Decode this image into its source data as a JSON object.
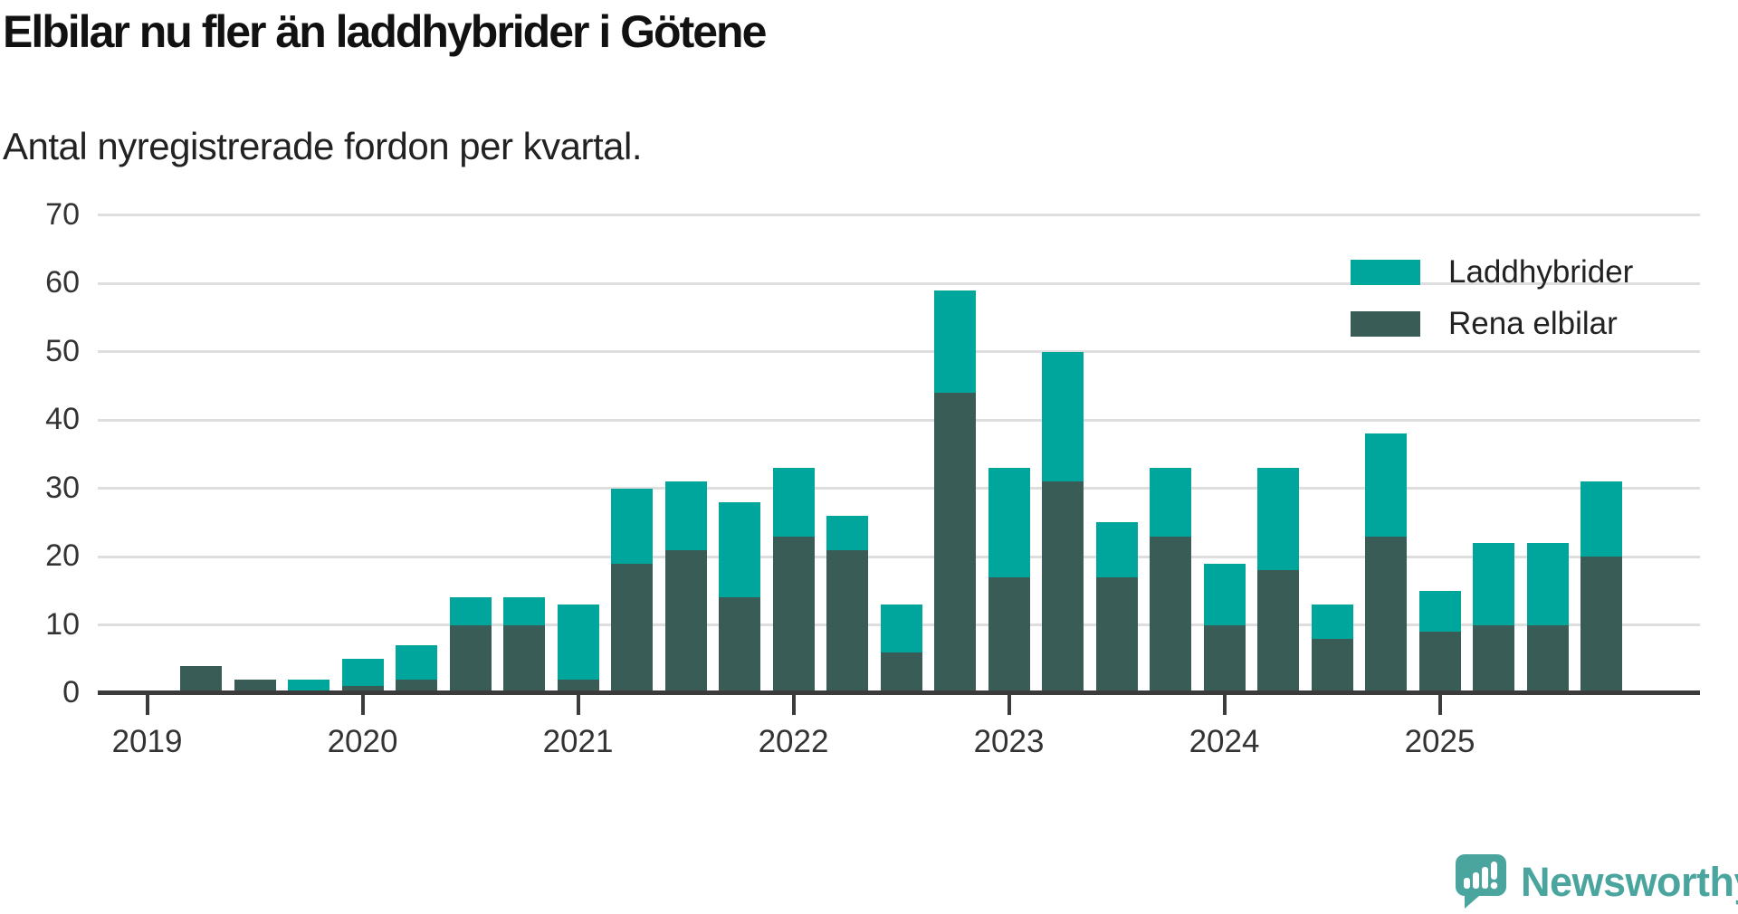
{
  "chart_data": {
    "type": "bar",
    "stacked": true,
    "title": "Elbilar nu fler än laddhybrider i Götene",
    "subtitle": "Antal nyregistrerade fordon per kvartal.",
    "categories": [
      "2019 Q1",
      "2019 Q2",
      "2019 Q3",
      "2019 Q4",
      "2020 Q1",
      "2020 Q2",
      "2020 Q3",
      "2020 Q4",
      "2021 Q1",
      "2021 Q2",
      "2021 Q3",
      "2021 Q4",
      "2022 Q1",
      "2022 Q2",
      "2022 Q3",
      "2022 Q4",
      "2023 Q1",
      "2023 Q2",
      "2023 Q3",
      "2023 Q4",
      "2024 Q1",
      "2024 Q2",
      "2024 Q3",
      "2024 Q4",
      "2025 Q1",
      "2025 Q2",
      "2025 Q3",
      "2025 Q4"
    ],
    "series": [
      {
        "name": "Laddhybrider",
        "color": "#00a59b",
        "values": [
          0,
          0,
          0,
          2,
          4,
          5,
          4,
          4,
          11,
          11,
          10,
          14,
          10,
          5,
          7,
          15,
          16,
          19,
          8,
          10,
          9,
          15,
          5,
          15,
          6,
          12,
          12,
          11
        ]
      },
      {
        "name": "Rena elbilar",
        "color": "#3a5c57",
        "values": [
          0,
          4,
          2,
          0,
          1,
          2,
          10,
          10,
          2,
          19,
          21,
          14,
          23,
          21,
          6,
          44,
          17,
          31,
          17,
          23,
          10,
          18,
          8,
          23,
          9,
          10,
          10,
          20
        ]
      }
    ],
    "stack_order_bottom_to_top": [
      "Rena elbilar",
      "Laddhybrider"
    ],
    "totals": [
      0,
      4,
      2,
      2,
      5,
      7,
      14,
      14,
      13,
      30,
      31,
      28,
      33,
      26,
      13,
      59,
      33,
      50,
      25,
      33,
      19,
      33,
      13,
      38,
      15,
      22,
      22,
      31
    ],
    "x_tick_labels": [
      "2019",
      "2020",
      "2021",
      "2022",
      "2023",
      "2024",
      "2025"
    ],
    "y_ticks": [
      0,
      10,
      20,
      30,
      40,
      50,
      60,
      70
    ],
    "ylim": [
      0,
      70
    ],
    "grid": "horizontal",
    "legend_position": "top-right"
  },
  "colors": {
    "laddhybrider": "#00a59b",
    "rena_elbilar": "#3a5c57",
    "gridline": "#dedede",
    "axis": "#3b3b3b",
    "brand_teal": "#4ba59f"
  },
  "footer": {
    "brand": "Newsworthy"
  }
}
